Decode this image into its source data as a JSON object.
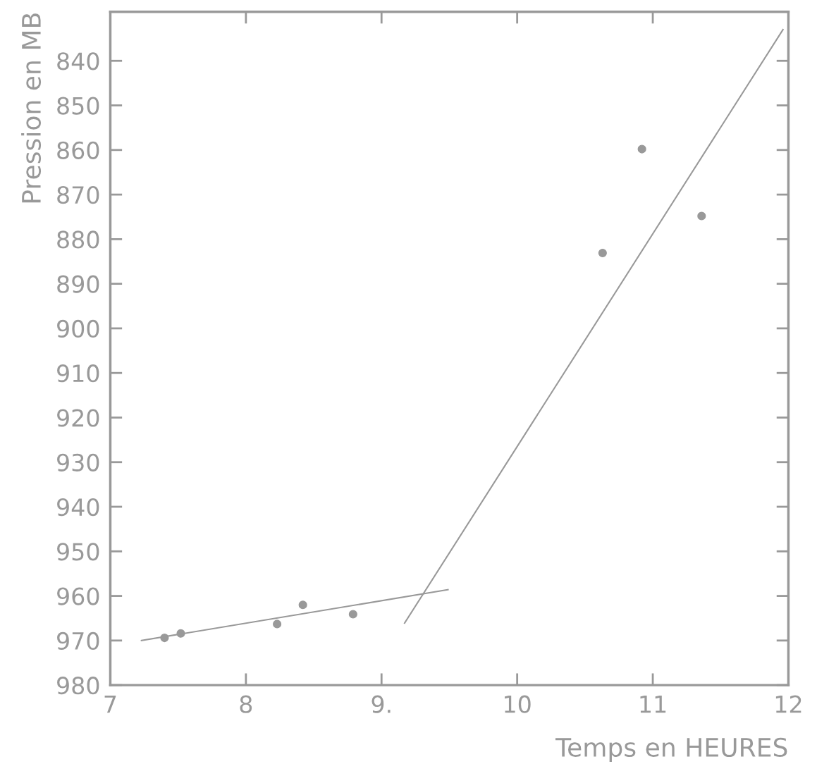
{
  "chart_data": {
    "type": "scatter",
    "xlabel": "Temps en HEURES",
    "ylabel": "Pression en MB",
    "xlim": [
      7,
      12
    ],
    "ylim": [
      980,
      829
    ],
    "xticks": [
      7,
      8,
      {
        "value": 9,
        "label": "9."
      },
      10,
      11,
      12
    ],
    "yticks": [
      840,
      850,
      860,
      870,
      880,
      890,
      900,
      910,
      920,
      930,
      940,
      950,
      960,
      970,
      980
    ],
    "grid": false,
    "marker": "circle",
    "series": [
      {
        "color": "#999999",
        "x": [
          7.4,
          7.52,
          8.23,
          8.42,
          8.79,
          10.63,
          10.92,
          11.36
        ],
        "values": [
          969.4,
          968.4,
          966.3,
          962.0,
          964.1,
          883.1,
          859.8,
          874.8
        ]
      },
      {
        "type": "line",
        "color": "#999999",
        "marker": "none",
        "x": [
          7.23,
          9.49
        ],
        "values": [
          970.0,
          958.6
        ]
      },
      {
        "type": "line",
        "color": "#999999",
        "marker": "none",
        "x": [
          9.17,
          11.96
        ],
        "values": [
          966.1,
          833.0
        ]
      }
    ]
  }
}
